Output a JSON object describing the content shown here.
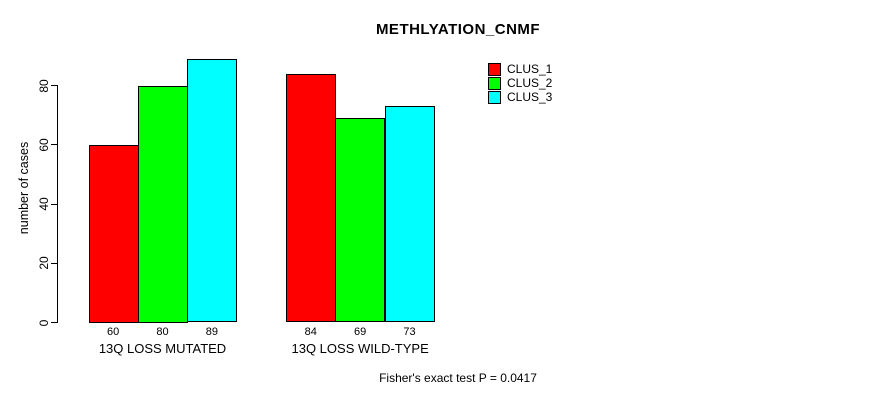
{
  "chart_data": {
    "type": "bar",
    "title": "METHLYATION_CNMF",
    "ylabel": "number of cases",
    "xlabel": "",
    "ylim": [
      0,
      89
    ],
    "yticks": [
      0,
      20,
      40,
      60,
      80
    ],
    "grid": false,
    "legend_position": "right",
    "bar_value_labels_shown": true,
    "categories": [
      "13Q LOSS MUTATED",
      "13Q LOSS WILD-TYPE"
    ],
    "series": [
      {
        "name": "CLUS_1",
        "color": "#FF0000",
        "values": [
          60,
          84
        ]
      },
      {
        "name": "CLUS_2",
        "color": "#00FF00",
        "values": [
          80,
          69
        ]
      },
      {
        "name": "CLUS_3",
        "color": "#00FFFF",
        "values": [
          89,
          73
        ]
      }
    ],
    "annotation": "Fisher's exact test P = 0.0417"
  },
  "colors": {
    "background": "#FFFFFF",
    "axis": "#000000",
    "text": "#000000"
  }
}
